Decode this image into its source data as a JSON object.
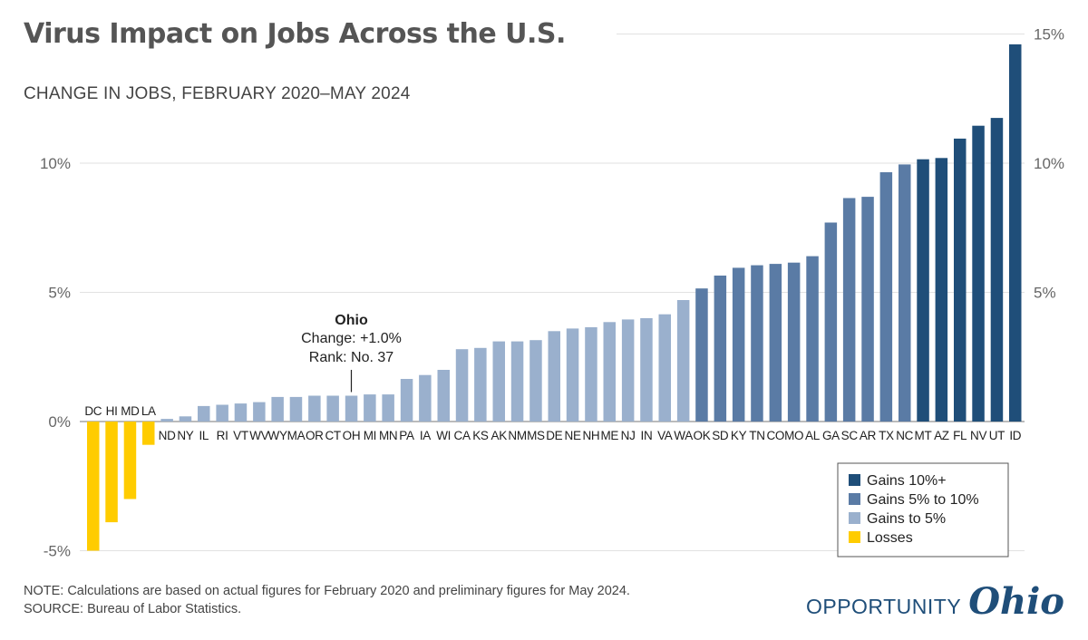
{
  "title": "Virus Impact on Jobs Across the U.S.",
  "subtitle": "CHANGE IN JOBS, FEBRUARY 2020–MAY 2024",
  "note": "NOTE: Calculations are based on actual figures for February 2020 and preliminary figures for May 2024.",
  "source": "SOURCE: Bureau of Labor Statistics.",
  "logo": {
    "word1": "OPPORTUNITY",
    "word2": "Ohio"
  },
  "chart_data": {
    "type": "bar",
    "ylim": [
      -5,
      15
    ],
    "left_ticks": [
      "10%",
      "5%",
      "0%",
      "-5%"
    ],
    "left_tick_values": [
      10,
      5,
      0,
      -5
    ],
    "right_ticks": [
      "15%",
      "10%",
      "5%"
    ],
    "right_tick_values": [
      15,
      10,
      5
    ],
    "grid": true,
    "legend_position": "bottom-right",
    "legend": [
      {
        "label": "Gains 10%+",
        "color": "#1f4e79"
      },
      {
        "label": "Gains 5% to 10%",
        "color": "#5a7ba5"
      },
      {
        "label": "Gains to 5%",
        "color": "#9ab0cd"
      },
      {
        "label": "Losses",
        "color": "#ffcc00"
      }
    ],
    "categories": [
      "DC",
      "HI",
      "MD",
      "LA",
      "ND",
      "NY",
      "IL",
      "RI",
      "VT",
      "WV",
      "WY",
      "MA",
      "OR",
      "CT",
      "OH",
      "MI",
      "MN",
      "PA",
      "IA",
      "WI",
      "CA",
      "KS",
      "AK",
      "NM",
      "MS",
      "DE",
      "NE",
      "NH",
      "ME",
      "NJ",
      "IN",
      "VA",
      "WA",
      "OK",
      "SD",
      "KY",
      "TN",
      "CO",
      "MO",
      "AL",
      "GA",
      "SC",
      "AR",
      "TX",
      "NC",
      "MT",
      "AZ",
      "FL",
      "NV",
      "UT",
      "ID"
    ],
    "values": [
      -5.0,
      -3.9,
      -3.0,
      -0.9,
      0.1,
      0.2,
      0.6,
      0.65,
      0.7,
      0.75,
      0.95,
      0.95,
      1.0,
      1.0,
      1.0,
      1.05,
      1.05,
      1.65,
      1.8,
      2.0,
      2.8,
      2.85,
      3.1,
      3.1,
      3.15,
      3.5,
      3.6,
      3.65,
      3.85,
      3.95,
      4.0,
      4.15,
      4.7,
      5.15,
      5.65,
      5.95,
      6.05,
      6.1,
      6.15,
      6.4,
      7.7,
      8.65,
      8.7,
      9.65,
      9.95,
      10.15,
      10.2,
      10.95,
      11.45,
      11.75,
      14.6
    ],
    "highlight": {
      "category": "OH",
      "title": "Ohio",
      "change": "Change: +1.0%",
      "rank": "Rank: No. 37"
    }
  }
}
